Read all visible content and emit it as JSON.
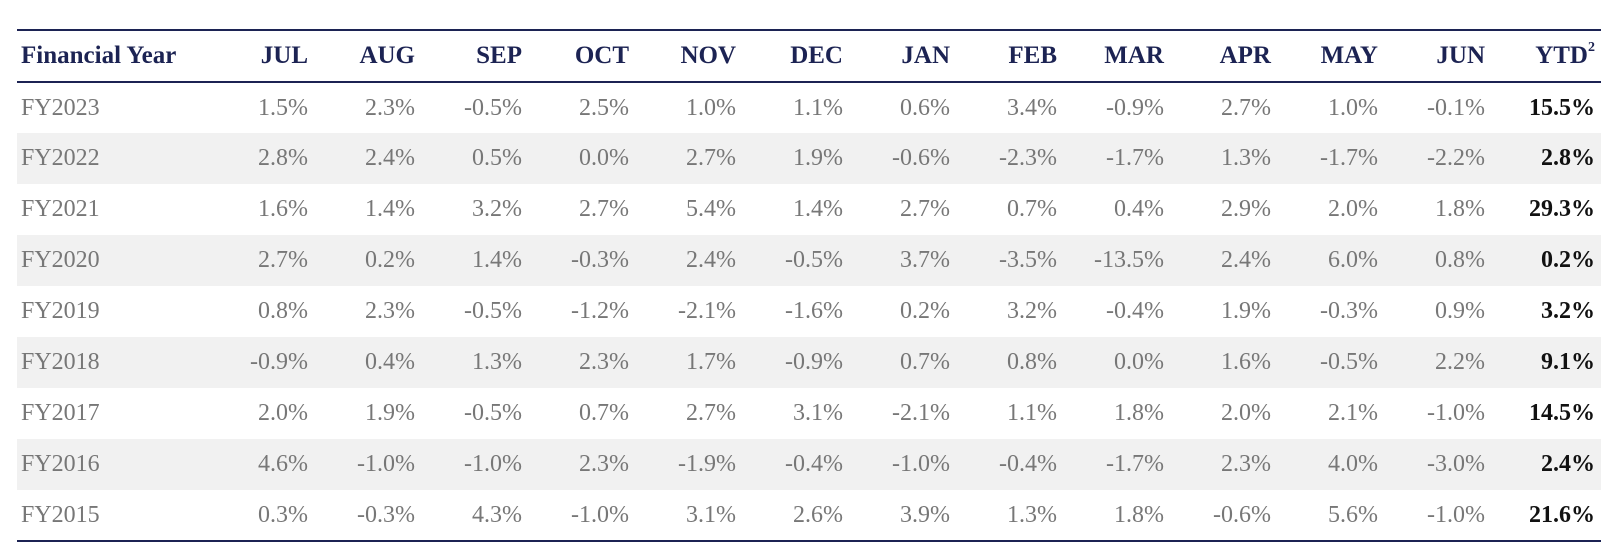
{
  "table": {
    "headers": [
      "Financial Year",
      "JUL",
      "AUG",
      "SEP",
      "OCT",
      "NOV",
      "DEC",
      "JAN",
      "FEB",
      "MAR",
      "APR",
      "MAY",
      "JUN",
      "YTD"
    ],
    "ytd_superscript": "2",
    "rows": [
      {
        "year": "FY2023",
        "values": [
          "1.5%",
          "2.3%",
          "-0.5%",
          "2.5%",
          "1.0%",
          "1.1%",
          "0.6%",
          "3.4%",
          "-0.9%",
          "2.7%",
          "1.0%",
          "-0.1%"
        ],
        "ytd": "15.5%"
      },
      {
        "year": "FY2022",
        "values": [
          "2.8%",
          "2.4%",
          "0.5%",
          "0.0%",
          "2.7%",
          "1.9%",
          "-0.6%",
          "-2.3%",
          "-1.7%",
          "1.3%",
          "-1.7%",
          "-2.2%"
        ],
        "ytd": "2.8%"
      },
      {
        "year": "FY2021",
        "values": [
          "1.6%",
          "1.4%",
          "3.2%",
          "2.7%",
          "5.4%",
          "1.4%",
          "2.7%",
          "0.7%",
          "0.4%",
          "2.9%",
          "2.0%",
          "1.8%"
        ],
        "ytd": "29.3%"
      },
      {
        "year": "FY2020",
        "values": [
          "2.7%",
          "0.2%",
          "1.4%",
          "-0.3%",
          "2.4%",
          "-0.5%",
          "3.7%",
          "-3.5%",
          "-13.5%",
          "2.4%",
          "6.0%",
          "0.8%"
        ],
        "ytd": "0.2%"
      },
      {
        "year": "FY2019",
        "values": [
          "0.8%",
          "2.3%",
          "-0.5%",
          "-1.2%",
          "-2.1%",
          "-1.6%",
          "0.2%",
          "3.2%",
          "-0.4%",
          "1.9%",
          "-0.3%",
          "0.9%"
        ],
        "ytd": "3.2%"
      },
      {
        "year": "FY2018",
        "values": [
          "-0.9%",
          "0.4%",
          "1.3%",
          "2.3%",
          "1.7%",
          "-0.9%",
          "0.7%",
          "0.8%",
          "0.0%",
          "1.6%",
          "-0.5%",
          "2.2%"
        ],
        "ytd": "9.1%"
      },
      {
        "year": "FY2017",
        "values": [
          "2.0%",
          "1.9%",
          "-0.5%",
          "0.7%",
          "2.7%",
          "3.1%",
          "-2.1%",
          "1.1%",
          "1.8%",
          "2.0%",
          "2.1%",
          "-1.0%"
        ],
        "ytd": "14.5%"
      },
      {
        "year": "FY2016",
        "values": [
          "4.6%",
          "-1.0%",
          "-1.0%",
          "2.3%",
          "-1.9%",
          "-0.4%",
          "-1.0%",
          "-0.4%",
          "-1.7%",
          "2.3%",
          "4.0%",
          "-3.0%"
        ],
        "ytd": "2.4%"
      },
      {
        "year": "FY2015",
        "values": [
          "0.3%",
          "-0.3%",
          "4.3%",
          "-1.0%",
          "3.1%",
          "2.6%",
          "3.9%",
          "1.3%",
          "1.8%",
          "-0.6%",
          "5.6%",
          "-1.0%"
        ],
        "ytd": "21.6%"
      }
    ]
  },
  "colors": {
    "header_text": "#1c2353",
    "rule": "#1c2353",
    "stripe": "#f1f1f1",
    "body_text": "#777777",
    "ytd_text": "#111111"
  }
}
